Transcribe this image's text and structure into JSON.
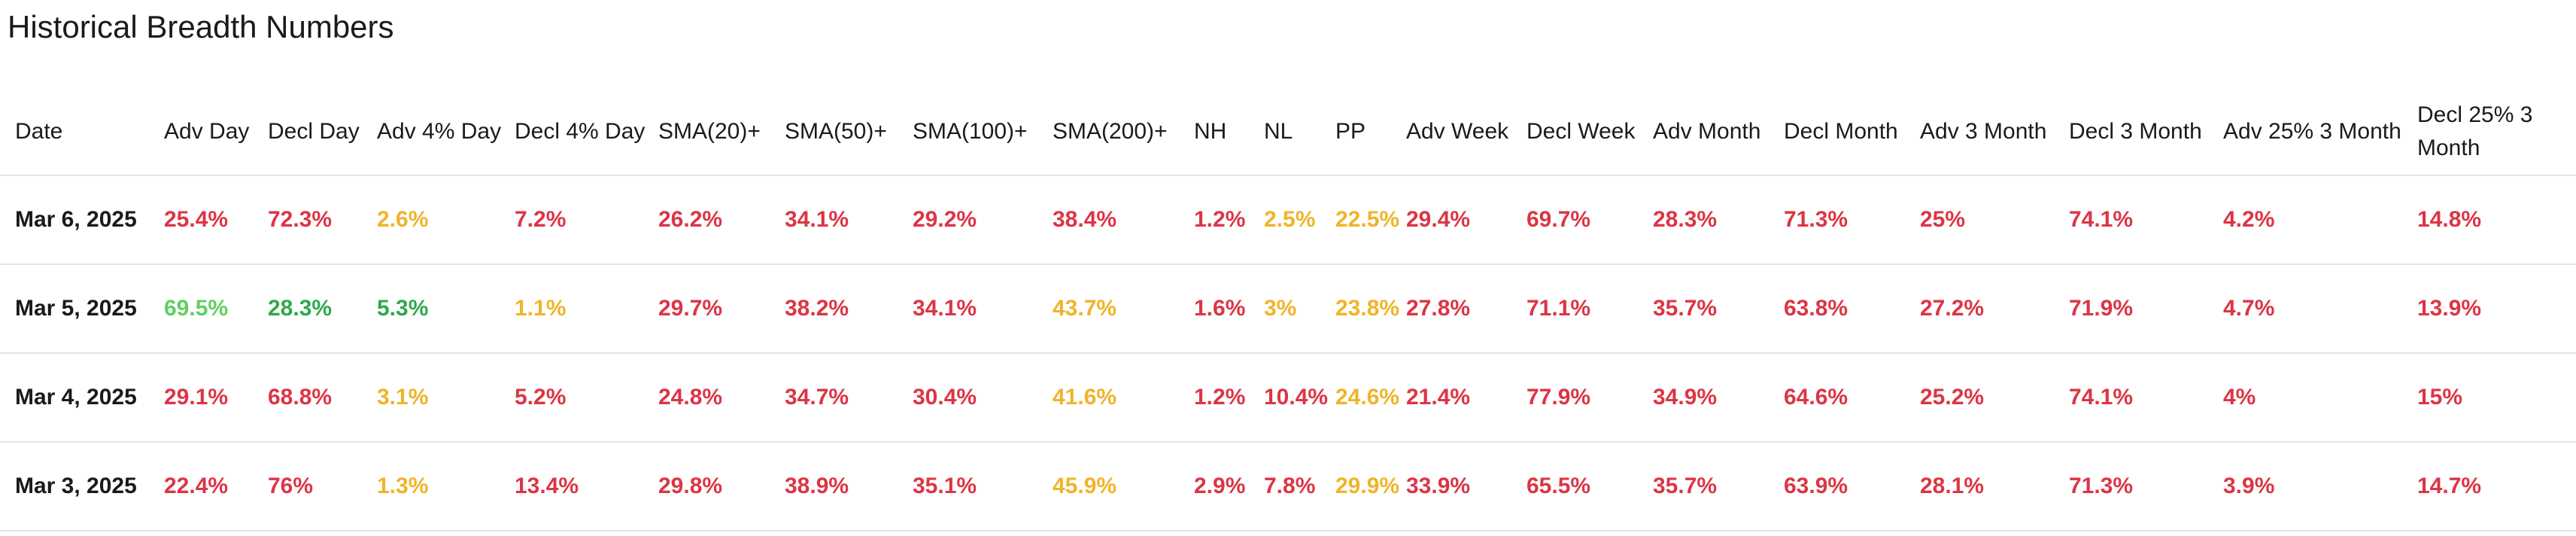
{
  "title": "Historical Breadth Numbers",
  "colors": {
    "red": "#dc3545",
    "green": "#5fd05f",
    "dark_green": "#2fa84a",
    "amber": "#f0b429"
  },
  "table": {
    "headers": [
      "Date",
      "Adv Day",
      "Decl Day",
      "Adv 4% Day",
      "Decl 4% Day",
      "SMA(20)+",
      "SMA(50)+",
      "SMA(100)+",
      "SMA(200)+",
      "NH",
      "NL",
      "PP",
      "Adv Week",
      "Decl Week",
      "Adv Month",
      "Decl Month",
      "Adv 3 Month",
      "Decl 3 Month",
      "Adv 25% 3 Month",
      "Decl 25% 3 Month"
    ],
    "rows": [
      {
        "date": "Mar 6, 2025",
        "cells": [
          {
            "v": "25.4%",
            "c": "red"
          },
          {
            "v": "72.3%",
            "c": "red"
          },
          {
            "v": "2.6%",
            "c": "amber"
          },
          {
            "v": "7.2%",
            "c": "red"
          },
          {
            "v": "26.2%",
            "c": "red"
          },
          {
            "v": "34.1%",
            "c": "red"
          },
          {
            "v": "29.2%",
            "c": "red"
          },
          {
            "v": "38.4%",
            "c": "red"
          },
          {
            "v": "1.2%",
            "c": "red"
          },
          {
            "v": "2.5%",
            "c": "amber"
          },
          {
            "v": "22.5%",
            "c": "amber"
          },
          {
            "v": "29.4%",
            "c": "red"
          },
          {
            "v": "69.7%",
            "c": "red"
          },
          {
            "v": "28.3%",
            "c": "red"
          },
          {
            "v": "71.3%",
            "c": "red"
          },
          {
            "v": "25%",
            "c": "red"
          },
          {
            "v": "74.1%",
            "c": "red"
          },
          {
            "v": "4.2%",
            "c": "red"
          },
          {
            "v": "14.8%",
            "c": "red"
          }
        ]
      },
      {
        "date": "Mar 5, 2025",
        "cells": [
          {
            "v": "69.5%",
            "c": "green"
          },
          {
            "v": "28.3%",
            "c": "dkgreen"
          },
          {
            "v": "5.3%",
            "c": "dkgreen"
          },
          {
            "v": "1.1%",
            "c": "amber"
          },
          {
            "v": "29.7%",
            "c": "red"
          },
          {
            "v": "38.2%",
            "c": "red"
          },
          {
            "v": "34.1%",
            "c": "red"
          },
          {
            "v": "43.7%",
            "c": "amber"
          },
          {
            "v": "1.6%",
            "c": "red"
          },
          {
            "v": "3%",
            "c": "amber"
          },
          {
            "v": "23.8%",
            "c": "amber"
          },
          {
            "v": "27.8%",
            "c": "red"
          },
          {
            "v": "71.1%",
            "c": "red"
          },
          {
            "v": "35.7%",
            "c": "red"
          },
          {
            "v": "63.8%",
            "c": "red"
          },
          {
            "v": "27.2%",
            "c": "red"
          },
          {
            "v": "71.9%",
            "c": "red"
          },
          {
            "v": "4.7%",
            "c": "red"
          },
          {
            "v": "13.9%",
            "c": "red"
          }
        ]
      },
      {
        "date": "Mar 4, 2025",
        "cells": [
          {
            "v": "29.1%",
            "c": "red"
          },
          {
            "v": "68.8%",
            "c": "red"
          },
          {
            "v": "3.1%",
            "c": "amber"
          },
          {
            "v": "5.2%",
            "c": "red"
          },
          {
            "v": "24.8%",
            "c": "red"
          },
          {
            "v": "34.7%",
            "c": "red"
          },
          {
            "v": "30.4%",
            "c": "red"
          },
          {
            "v": "41.6%",
            "c": "amber"
          },
          {
            "v": "1.2%",
            "c": "red"
          },
          {
            "v": "10.4%",
            "c": "red"
          },
          {
            "v": "24.6%",
            "c": "amber"
          },
          {
            "v": "21.4%",
            "c": "red"
          },
          {
            "v": "77.9%",
            "c": "red"
          },
          {
            "v": "34.9%",
            "c": "red"
          },
          {
            "v": "64.6%",
            "c": "red"
          },
          {
            "v": "25.2%",
            "c": "red"
          },
          {
            "v": "74.1%",
            "c": "red"
          },
          {
            "v": "4%",
            "c": "red"
          },
          {
            "v": "15%",
            "c": "red"
          }
        ]
      },
      {
        "date": "Mar 3, 2025",
        "cells": [
          {
            "v": "22.4%",
            "c": "red"
          },
          {
            "v": "76%",
            "c": "red"
          },
          {
            "v": "1.3%",
            "c": "amber"
          },
          {
            "v": "13.4%",
            "c": "red"
          },
          {
            "v": "29.8%",
            "c": "red"
          },
          {
            "v": "38.9%",
            "c": "red"
          },
          {
            "v": "35.1%",
            "c": "red"
          },
          {
            "v": "45.9%",
            "c": "amber"
          },
          {
            "v": "2.9%",
            "c": "red"
          },
          {
            "v": "7.8%",
            "c": "red"
          },
          {
            "v": "29.9%",
            "c": "amber"
          },
          {
            "v": "33.9%",
            "c": "red"
          },
          {
            "v": "65.5%",
            "c": "red"
          },
          {
            "v": "35.7%",
            "c": "red"
          },
          {
            "v": "63.9%",
            "c": "red"
          },
          {
            "v": "28.1%",
            "c": "red"
          },
          {
            "v": "71.3%",
            "c": "red"
          },
          {
            "v": "3.9%",
            "c": "red"
          },
          {
            "v": "14.7%",
            "c": "red"
          }
        ]
      }
    ]
  }
}
